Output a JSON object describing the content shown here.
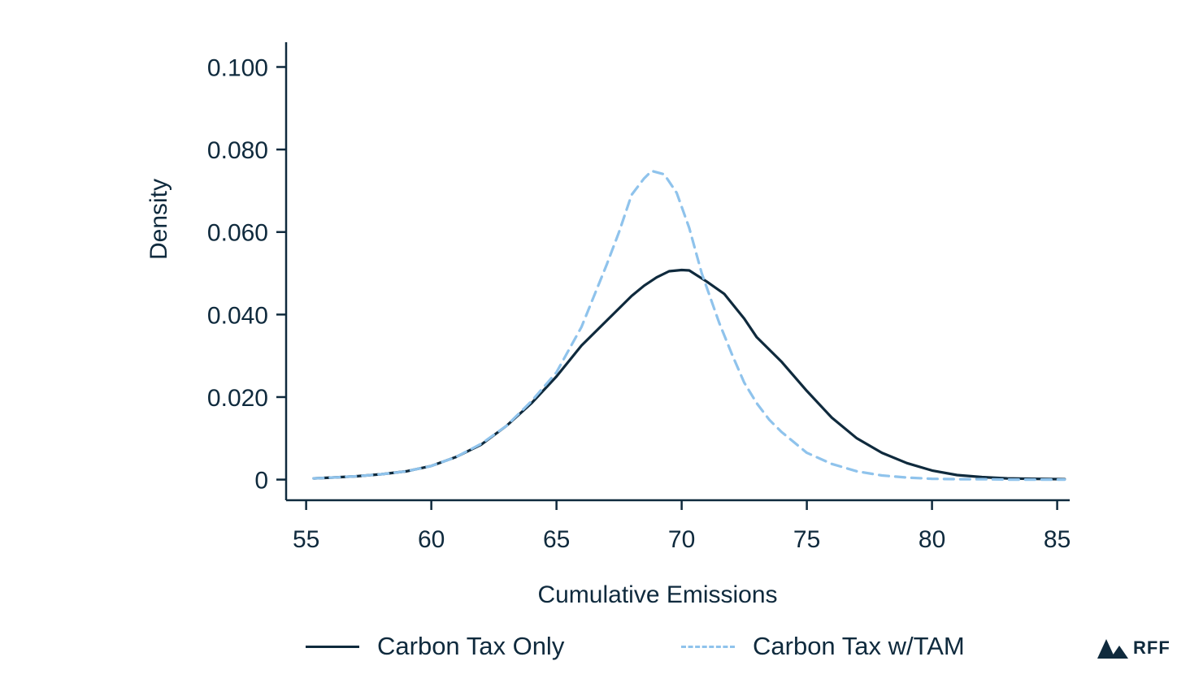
{
  "chart_data": {
    "type": "line",
    "xlabel": "Cumulative Emissions",
    "ylabel": "Density",
    "xlim": [
      54.2,
      85.5
    ],
    "ylim": [
      -0.005,
      0.106
    ],
    "x_ticks": [
      55,
      60,
      65,
      70,
      75,
      80,
      85
    ],
    "x_tick_labels": [
      "55",
      "60",
      "65",
      "70",
      "75",
      "80",
      "85"
    ],
    "y_ticks": [
      0,
      0.02,
      0.04,
      0.06,
      0.08,
      0.1
    ],
    "y_tick_labels": [
      "0",
      "0.020",
      "0.040",
      "0.060",
      "0.080",
      "0.100"
    ],
    "grid": false,
    "legend_position": "bottom",
    "series": [
      {
        "name": "Carbon Tax Only",
        "color": "#0f2a3d",
        "style": "solid",
        "x": [
          55.3,
          56,
          57,
          58,
          59,
          60,
          61,
          62,
          63,
          64,
          65,
          66,
          67,
          68,
          68.5,
          69,
          69.5,
          70,
          70.3,
          71,
          71.7,
          72.5,
          73,
          74,
          75,
          76,
          77,
          78,
          79,
          80,
          81,
          82,
          83,
          84,
          85.3
        ],
        "values": [
          0.0003,
          0.0005,
          0.0008,
          0.0013,
          0.002,
          0.0033,
          0.0055,
          0.0085,
          0.013,
          0.0185,
          0.025,
          0.0325,
          0.0385,
          0.0445,
          0.047,
          0.049,
          0.0505,
          0.0508,
          0.0507,
          0.048,
          0.045,
          0.039,
          0.0345,
          0.0285,
          0.0215,
          0.015,
          0.01,
          0.0065,
          0.004,
          0.0022,
          0.0011,
          0.0006,
          0.0003,
          0.0002,
          0.0001
        ]
      },
      {
        "name": "Carbon Tax w/TAM",
        "color": "#8fc3ec",
        "style": "dashed",
        "x": [
          55.3,
          56,
          57,
          58,
          59,
          60,
          61,
          62,
          63,
          64,
          65,
          66,
          67,
          67.5,
          68,
          68.5,
          68.8,
          69.3,
          69.8,
          70.3,
          70.8,
          71.5,
          72,
          72.5,
          73,
          73.5,
          74,
          75,
          76,
          77,
          78,
          79,
          80,
          81,
          82,
          83,
          84,
          85.3
        ],
        "values": [
          0.0003,
          0.0005,
          0.0008,
          0.0013,
          0.002,
          0.0033,
          0.0055,
          0.0087,
          0.013,
          0.019,
          0.026,
          0.037,
          0.052,
          0.06,
          0.069,
          0.073,
          0.0748,
          0.074,
          0.0695,
          0.061,
          0.05,
          0.038,
          0.0305,
          0.0235,
          0.0185,
          0.0145,
          0.0115,
          0.0065,
          0.0038,
          0.002,
          0.001,
          0.0005,
          0.0002,
          0.0001,
          0.0001,
          0,
          0,
          0
        ]
      }
    ]
  },
  "logo": {
    "text": "RFF",
    "icon": "mountain-logo-icon"
  }
}
